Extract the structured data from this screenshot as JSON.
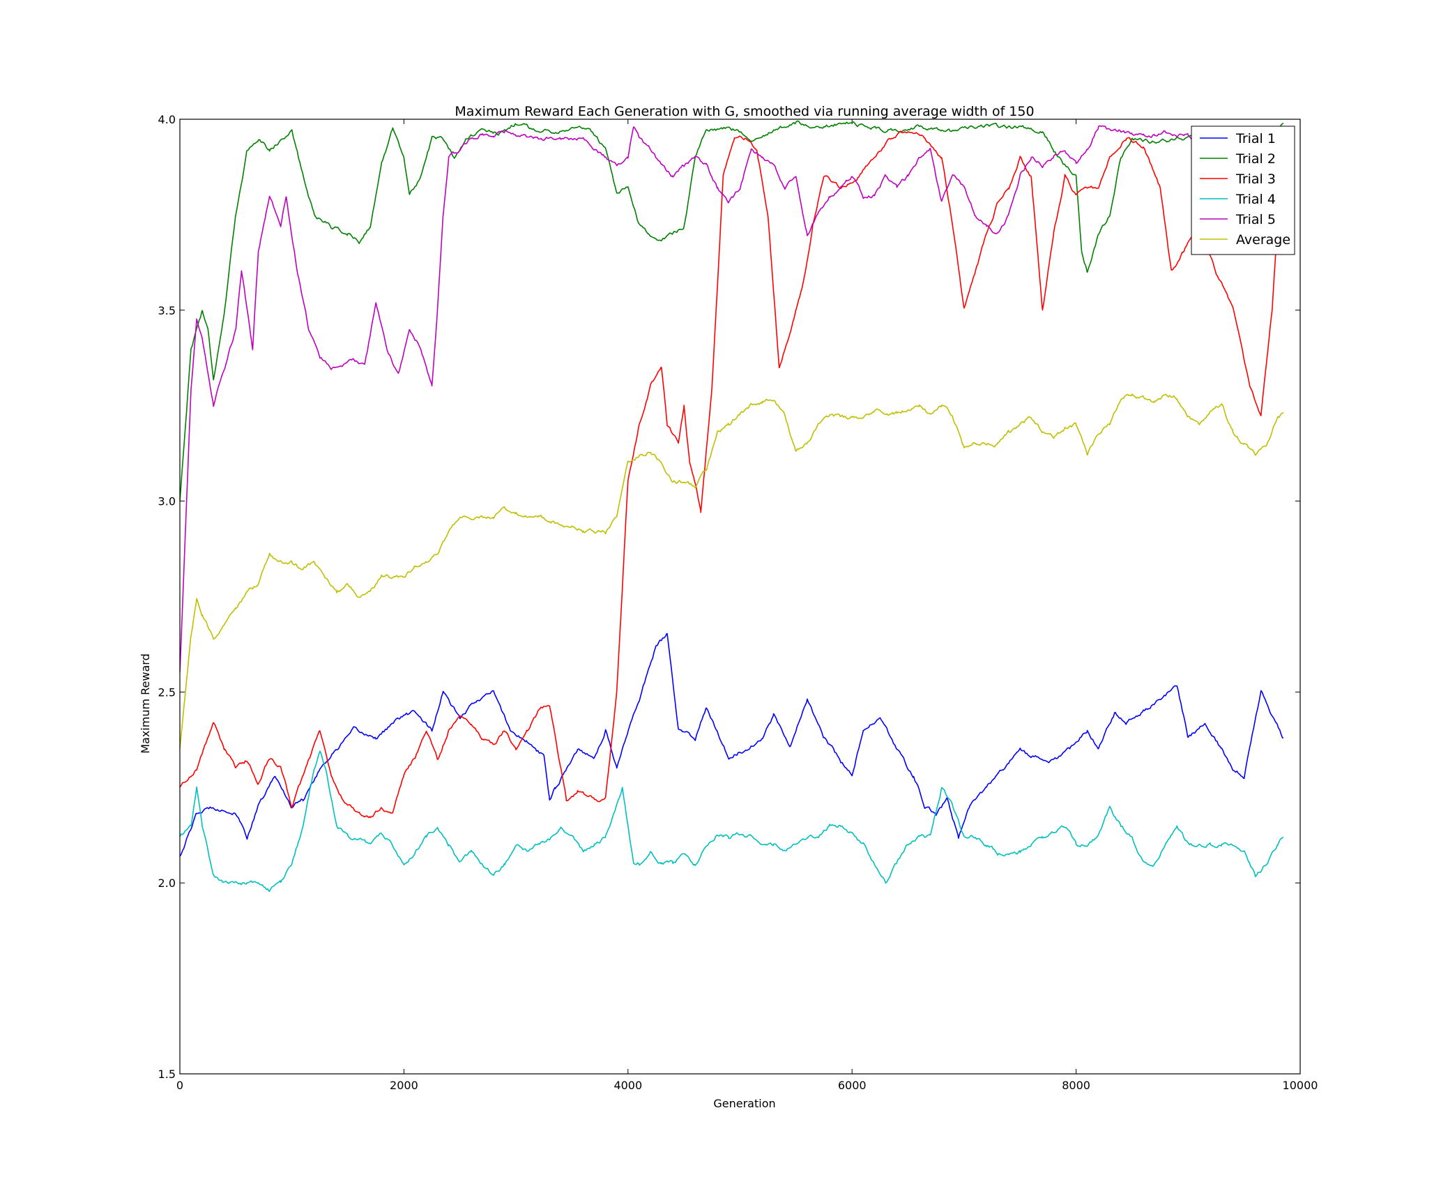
{
  "chart_data": {
    "type": "line",
    "title": "Maximum Reward Each Generation with G, smoothed via running average width of 150",
    "xlabel": "Generation",
    "ylabel": "Maximum Reward",
    "xlim": [
      0,
      10000
    ],
    "ylim": [
      1.5,
      4.0
    ],
    "xticks": [
      0,
      2000,
      4000,
      6000,
      8000,
      10000
    ],
    "xtick_labels": [
      "0",
      "2000",
      "4000",
      "6000",
      "8000",
      "10000"
    ],
    "yticks": [
      1.5,
      2.0,
      2.5,
      3.0,
      3.5,
      4.0
    ],
    "ytick_labels": [
      "1.5",
      "2.0",
      "2.5",
      "3.0",
      "3.5",
      "4.0"
    ],
    "grid": false,
    "legend_position": "top-right",
    "noise": 0.008,
    "series": [
      {
        "name": "Trial 1",
        "color": "#0000ff",
        "x": [
          0,
          150,
          300,
          500,
          600,
          700,
          850,
          1000,
          1100,
          1250,
          1400,
          1550,
          1750,
          1950,
          2100,
          2250,
          2350,
          2500,
          2650,
          2800,
          2950,
          3100,
          3250,
          3300,
          3350,
          3450,
          3550,
          3700,
          3800,
          3900,
          4000,
          4100,
          4250,
          4350,
          4450,
          4600,
          4700,
          4900,
          5050,
          5200,
          5300,
          5450,
          5600,
          5750,
          5900,
          6000,
          6100,
          6250,
          6400,
          6550,
          6650,
          6750,
          6850,
          6950,
          7050,
          7200,
          7350,
          7500,
          7600,
          7800,
          7950,
          8100,
          8200,
          8350,
          8450,
          8600,
          8750,
          8900,
          9000,
          9150,
          9300,
          9400,
          9500,
          9650,
          9850
        ],
        "y": [
          2.07,
          2.18,
          2.2,
          2.18,
          2.12,
          2.2,
          2.28,
          2.2,
          2.22,
          2.3,
          2.35,
          2.4,
          2.38,
          2.43,
          2.45,
          2.4,
          2.5,
          2.43,
          2.48,
          2.5,
          2.4,
          2.37,
          2.33,
          2.22,
          2.25,
          2.3,
          2.35,
          2.33,
          2.4,
          2.3,
          2.4,
          2.48,
          2.62,
          2.65,
          2.4,
          2.38,
          2.46,
          2.33,
          2.35,
          2.38,
          2.44,
          2.36,
          2.48,
          2.38,
          2.32,
          2.28,
          2.4,
          2.43,
          2.35,
          2.28,
          2.2,
          2.18,
          2.22,
          2.12,
          2.2,
          2.25,
          2.3,
          2.35,
          2.33,
          2.32,
          2.35,
          2.4,
          2.35,
          2.45,
          2.42,
          2.45,
          2.48,
          2.52,
          2.38,
          2.42,
          2.35,
          2.3,
          2.28,
          2.5,
          2.38
        ]
      },
      {
        "name": "Trial 2",
        "color": "#008000",
        "x": [
          0,
          100,
          200,
          250,
          300,
          400,
          500,
          600,
          700,
          800,
          1000,
          1100,
          1200,
          1350,
          1500,
          1600,
          1700,
          1800,
          1900,
          2000,
          2050,
          2150,
          2250,
          2350,
          2450,
          2550,
          2700,
          2850,
          3000,
          3200,
          3400,
          3600,
          3700,
          3800,
          3900,
          4000,
          4100,
          4200,
          4300,
          4400,
          4500,
          4600,
          4700,
          4900,
          5100,
          5300,
          5500,
          5700,
          6000,
          6300,
          6600,
          6900,
          7200,
          7500,
          7700,
          7800,
          7900,
          8000,
          8050,
          8100,
          8200,
          8300,
          8400,
          8500,
          8700,
          8900,
          9100,
          9300,
          9500,
          9700,
          9850
        ],
        "y": [
          3.0,
          3.4,
          3.5,
          3.45,
          3.32,
          3.5,
          3.75,
          3.92,
          3.95,
          3.92,
          3.97,
          3.85,
          3.75,
          3.72,
          3.7,
          3.68,
          3.72,
          3.88,
          3.98,
          3.9,
          3.8,
          3.85,
          3.95,
          3.95,
          3.9,
          3.95,
          3.97,
          3.96,
          3.99,
          3.97,
          3.97,
          3.98,
          3.96,
          3.92,
          3.8,
          3.82,
          3.72,
          3.7,
          3.68,
          3.7,
          3.72,
          3.9,
          3.97,
          3.98,
          3.95,
          3.97,
          3.99,
          3.98,
          3.99,
          3.97,
          3.98,
          3.97,
          3.98,
          3.98,
          3.97,
          3.92,
          3.88,
          3.85,
          3.65,
          3.6,
          3.7,
          3.75,
          3.9,
          3.95,
          3.94,
          3.95,
          3.95,
          3.97,
          3.97,
          3.95,
          3.99
        ]
      },
      {
        "name": "Trial 3",
        "color": "#ff0000",
        "x": [
          0,
          150,
          300,
          400,
          500,
          600,
          700,
          800,
          900,
          1000,
          1100,
          1250,
          1350,
          1450,
          1600,
          1700,
          1800,
          1900,
          2000,
          2100,
          2200,
          2300,
          2400,
          2500,
          2600,
          2700,
          2800,
          2900,
          3000,
          3100,
          3200,
          3300,
          3400,
          3450,
          3550,
          3700,
          3800,
          3900,
          4000,
          4100,
          4200,
          4300,
          4350,
          4450,
          4500,
          4550,
          4600,
          4650,
          4750,
          4850,
          4950,
          5050,
          5150,
          5250,
          5350,
          5450,
          5550,
          5650,
          5750,
          5900,
          6050,
          6200,
          6350,
          6500,
          6650,
          6800,
          6900,
          7000,
          7100,
          7200,
          7300,
          7400,
          7500,
          7600,
          7700,
          7800,
          7900,
          8000,
          8100,
          8200,
          8300,
          8450,
          8600,
          8750,
          8850,
          8950,
          9100,
          9250,
          9400,
          9550,
          9650,
          9750,
          9850
        ],
        "y": [
          2.25,
          2.3,
          2.42,
          2.35,
          2.3,
          2.32,
          2.26,
          2.33,
          2.3,
          2.2,
          2.28,
          2.4,
          2.28,
          2.22,
          2.18,
          2.17,
          2.2,
          2.18,
          2.28,
          2.33,
          2.4,
          2.32,
          2.4,
          2.44,
          2.42,
          2.38,
          2.36,
          2.4,
          2.35,
          2.4,
          2.45,
          2.47,
          2.3,
          2.22,
          2.24,
          2.22,
          2.22,
          2.5,
          3.05,
          3.2,
          3.3,
          3.35,
          3.2,
          3.15,
          3.25,
          3.1,
          3.05,
          2.97,
          3.3,
          3.85,
          3.95,
          3.95,
          3.92,
          3.75,
          3.35,
          3.45,
          3.55,
          3.72,
          3.85,
          3.82,
          3.85,
          3.9,
          3.95,
          3.97,
          3.95,
          3.9,
          3.72,
          3.5,
          3.6,
          3.7,
          3.78,
          3.82,
          3.9,
          3.85,
          3.5,
          3.7,
          3.85,
          3.8,
          3.82,
          3.82,
          3.9,
          3.95,
          3.93,
          3.82,
          3.6,
          3.65,
          3.72,
          3.6,
          3.5,
          3.3,
          3.23,
          3.5,
          3.97
        ]
      },
      {
        "name": "Trial 4",
        "color": "#00bfbf",
        "x": [
          0,
          100,
          150,
          200,
          300,
          400,
          500,
          600,
          700,
          800,
          900,
          1000,
          1100,
          1200,
          1250,
          1300,
          1400,
          1500,
          1600,
          1700,
          1800,
          1900,
          2000,
          2100,
          2200,
          2300,
          2400,
          2500,
          2600,
          2700,
          2800,
          2900,
          3000,
          3100,
          3200,
          3300,
          3400,
          3500,
          3600,
          3700,
          3800,
          3900,
          3950,
          4000,
          4050,
          4100,
          4200,
          4300,
          4400,
          4500,
          4600,
          4700,
          4800,
          4900,
          5000,
          5100,
          5200,
          5300,
          5400,
          5500,
          5600,
          5700,
          5800,
          5900,
          6000,
          6100,
          6200,
          6300,
          6400,
          6500,
          6600,
          6700,
          6800,
          6900,
          7000,
          7100,
          7200,
          7300,
          7400,
          7500,
          7600,
          7700,
          7800,
          7900,
          8000,
          8100,
          8200,
          8300,
          8400,
          8500,
          8600,
          8700,
          8800,
          8900,
          9000,
          9100,
          9200,
          9300,
          9400,
          9500,
          9600,
          9700,
          9800,
          9850
        ],
        "y": [
          2.12,
          2.15,
          2.25,
          2.15,
          2.02,
          2.0,
          2.0,
          2.0,
          2.0,
          1.98,
          2.0,
          2.05,
          2.15,
          2.3,
          2.35,
          2.3,
          2.15,
          2.12,
          2.12,
          2.1,
          2.13,
          2.1,
          2.05,
          2.08,
          2.12,
          2.15,
          2.1,
          2.05,
          2.08,
          2.05,
          2.02,
          2.05,
          2.1,
          2.08,
          2.1,
          2.12,
          2.15,
          2.12,
          2.08,
          2.1,
          2.12,
          2.2,
          2.25,
          2.15,
          2.05,
          2.05,
          2.08,
          2.05,
          2.05,
          2.08,
          2.05,
          2.1,
          2.13,
          2.12,
          2.13,
          2.12,
          2.1,
          2.1,
          2.08,
          2.1,
          2.12,
          2.12,
          2.15,
          2.15,
          2.13,
          2.1,
          2.05,
          2.0,
          2.05,
          2.1,
          2.12,
          2.12,
          2.25,
          2.2,
          2.12,
          2.12,
          2.1,
          2.08,
          2.08,
          2.08,
          2.1,
          2.12,
          2.13,
          2.15,
          2.1,
          2.1,
          2.12,
          2.2,
          2.15,
          2.12,
          2.05,
          2.05,
          2.1,
          2.15,
          2.1,
          2.1,
          2.1,
          2.1,
          2.1,
          2.08,
          2.02,
          2.05,
          2.1,
          2.12
        ]
      },
      {
        "name": "Trial 5",
        "color": "#bf00bf",
        "x": [
          0,
          100,
          150,
          200,
          300,
          400,
          500,
          550,
          650,
          700,
          800,
          900,
          950,
          1050,
          1150,
          1250,
          1350,
          1450,
          1550,
          1650,
          1750,
          1850,
          1950,
          2050,
          2150,
          2250,
          2300,
          2350,
          2400,
          2500,
          2600,
          2700,
          2800,
          2900,
          3000,
          3200,
          3400,
          3600,
          3800,
          3900,
          4000,
          4050,
          4100,
          4200,
          4300,
          4400,
          4500,
          4600,
          4700,
          4800,
          4900,
          5000,
          5100,
          5200,
          5300,
          5400,
          5500,
          5600,
          5700,
          5800,
          5900,
          6000,
          6100,
          6200,
          6300,
          6400,
          6500,
          6600,
          6700,
          6800,
          6900,
          7000,
          7100,
          7200,
          7300,
          7400,
          7500,
          7600,
          7700,
          7800,
          7900,
          8000,
          8100,
          8200,
          8300,
          8400,
          8500,
          8600,
          8700,
          8800,
          8900,
          9000,
          9100,
          9200,
          9300,
          9400,
          9500,
          9600,
          9700,
          9800,
          9850
        ],
        "y": [
          2.55,
          3.3,
          3.47,
          3.42,
          3.25,
          3.35,
          3.45,
          3.6,
          3.4,
          3.65,
          3.8,
          3.72,
          3.8,
          3.6,
          3.45,
          3.38,
          3.35,
          3.35,
          3.37,
          3.35,
          3.52,
          3.4,
          3.33,
          3.45,
          3.4,
          3.3,
          3.5,
          3.75,
          3.9,
          3.92,
          3.95,
          3.96,
          3.96,
          3.97,
          3.96,
          3.95,
          3.95,
          3.95,
          3.9,
          3.88,
          3.9,
          3.98,
          3.95,
          3.92,
          3.88,
          3.85,
          3.88,
          3.9,
          3.88,
          3.82,
          3.78,
          3.82,
          3.92,
          3.9,
          3.88,
          3.82,
          3.85,
          3.7,
          3.75,
          3.8,
          3.82,
          3.85,
          3.8,
          3.8,
          3.85,
          3.82,
          3.85,
          3.9,
          3.92,
          3.78,
          3.85,
          3.82,
          3.75,
          3.72,
          3.7,
          3.75,
          3.85,
          3.9,
          3.88,
          3.9,
          3.92,
          3.88,
          3.92,
          3.98,
          3.97,
          3.97,
          3.96,
          3.96,
          3.96,
          3.97,
          3.96,
          3.96,
          3.94,
          3.88,
          3.78,
          3.7,
          3.68,
          3.72,
          3.75,
          3.82,
          3.95
        ]
      },
      {
        "name": "Average",
        "color": "#bfbf00",
        "x": [
          0,
          100,
          150,
          200,
          300,
          400,
          500,
          600,
          700,
          800,
          900,
          1000,
          1100,
          1200,
          1300,
          1400,
          1500,
          1600,
          1700,
          1800,
          1900,
          2000,
          2100,
          2200,
          2300,
          2400,
          2500,
          2600,
          2700,
          2800,
          2900,
          3000,
          3100,
          3200,
          3300,
          3400,
          3500,
          3600,
          3700,
          3800,
          3900,
          4000,
          4100,
          4200,
          4300,
          4400,
          4500,
          4600,
          4700,
          4800,
          4900,
          5000,
          5100,
          5200,
          5300,
          5400,
          5500,
          5600,
          5700,
          5800,
          5900,
          6000,
          6100,
          6200,
          6300,
          6400,
          6500,
          6600,
          6700,
          6800,
          6900,
          7000,
          7100,
          7200,
          7300,
          7400,
          7500,
          7600,
          7700,
          7800,
          7900,
          8000,
          8100,
          8200,
          8300,
          8400,
          8500,
          8600,
          8700,
          8800,
          8900,
          9000,
          9100,
          9200,
          9300,
          9400,
          9500,
          9600,
          9700,
          9800,
          9850
        ],
        "y": [
          2.35,
          2.65,
          2.74,
          2.7,
          2.64,
          2.68,
          2.72,
          2.76,
          2.78,
          2.86,
          2.84,
          2.84,
          2.82,
          2.84,
          2.8,
          2.76,
          2.78,
          2.75,
          2.76,
          2.8,
          2.8,
          2.8,
          2.83,
          2.84,
          2.86,
          2.92,
          2.96,
          2.95,
          2.96,
          2.96,
          2.98,
          2.97,
          2.96,
          2.96,
          2.95,
          2.94,
          2.93,
          2.92,
          2.92,
          2.92,
          2.96,
          3.1,
          3.12,
          3.13,
          3.1,
          3.05,
          3.05,
          3.04,
          3.08,
          3.18,
          3.2,
          3.23,
          3.25,
          3.26,
          3.27,
          3.22,
          3.13,
          3.15,
          3.2,
          3.22,
          3.22,
          3.22,
          3.22,
          3.24,
          3.23,
          3.23,
          3.24,
          3.25,
          3.23,
          3.25,
          3.22,
          3.14,
          3.15,
          3.15,
          3.15,
          3.18,
          3.2,
          3.22,
          3.18,
          3.17,
          3.19,
          3.2,
          3.12,
          3.18,
          3.2,
          3.27,
          3.28,
          3.27,
          3.26,
          3.28,
          3.27,
          3.22,
          3.2,
          3.24,
          3.25,
          3.18,
          3.15,
          3.12,
          3.15,
          3.22,
          3.23
        ]
      }
    ]
  }
}
